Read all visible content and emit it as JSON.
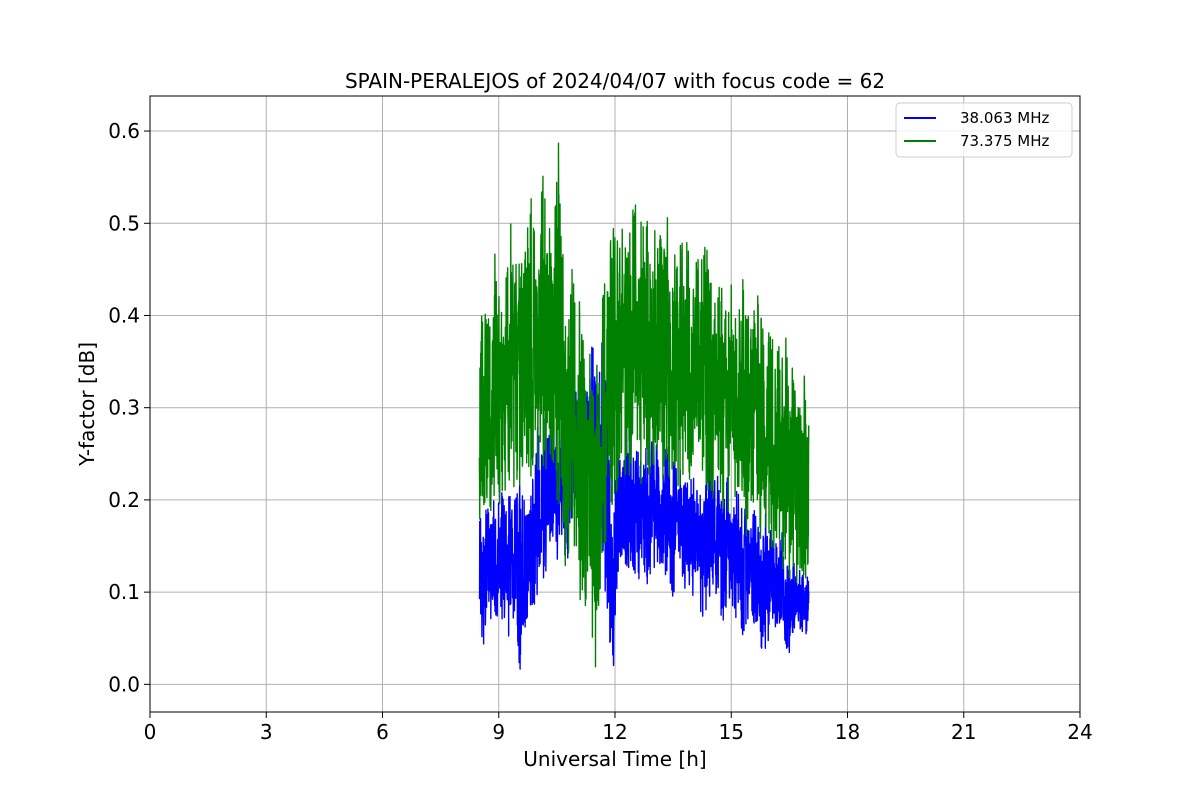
{
  "chart_data": {
    "type": "line",
    "title": "SPAIN-PERALEJOS of 2024/04/07 with focus code = 62",
    "xlabel": "Universal Time [h]",
    "ylabel": "Y-factor [dB]",
    "xlim": [
      0,
      24
    ],
    "ylim": [
      -0.03,
      0.638
    ],
    "xticks": [
      0,
      3,
      6,
      9,
      12,
      15,
      18,
      21,
      24
    ],
    "xtick_labels": [
      "0",
      "3",
      "6",
      "9",
      "12",
      "15",
      "18",
      "21",
      "24"
    ],
    "yticks": [
      0.0,
      0.1,
      0.2,
      0.3,
      0.4,
      0.5,
      0.6
    ],
    "ytick_labels": [
      "0.0",
      "0.1",
      "0.2",
      "0.3",
      "0.4",
      "0.5",
      "0.6"
    ],
    "grid": true,
    "legend_position": "upper right",
    "series": [
      {
        "name": "38.063 MHz",
        "color": "#0000ff",
        "x": [
          8.5,
          8.6,
          8.7,
          8.8,
          8.9,
          9.0,
          9.1,
          9.2,
          9.3,
          9.4,
          9.5,
          9.6,
          9.7,
          9.8,
          9.9,
          10.0,
          10.1,
          10.2,
          10.3,
          10.4,
          10.5,
          10.6,
          10.7,
          10.8,
          10.9,
          11.0,
          11.1,
          11.2,
          11.3,
          11.4,
          11.5,
          11.6,
          11.7,
          11.8,
          11.9,
          12.0,
          12.1,
          12.2,
          12.3,
          12.4,
          12.5,
          12.6,
          12.7,
          12.8,
          12.9,
          13.0,
          13.1,
          13.2,
          13.3,
          13.4,
          13.5,
          13.6,
          13.7,
          13.8,
          13.9,
          14.0,
          14.1,
          14.2,
          14.3,
          14.4,
          14.5,
          14.6,
          14.7,
          14.8,
          14.9,
          15.0,
          15.1,
          15.2,
          15.3,
          15.4,
          15.5,
          15.6,
          15.7,
          15.8,
          15.9,
          16.0,
          16.1,
          16.2,
          16.3,
          16.4,
          16.5,
          16.6,
          16.7,
          16.8,
          16.9,
          17.0
        ],
        "y_low": [
          0.07,
          0.03,
          0.08,
          0.07,
          0.08,
          0.06,
          0.07,
          0.06,
          0.04,
          0.08,
          0.03,
          0.0,
          0.07,
          0.06,
          0.08,
          0.09,
          0.12,
          0.11,
          0.14,
          0.16,
          0.13,
          0.17,
          0.12,
          0.14,
          0.18,
          0.2,
          0.23,
          0.24,
          0.22,
          0.18,
          0.25,
          0.22,
          0.11,
          0.04,
          0.02,
          0.02,
          0.14,
          0.12,
          0.13,
          0.11,
          0.12,
          0.1,
          0.14,
          0.09,
          0.12,
          0.11,
          0.13,
          0.12,
          0.11,
          0.12,
          0.08,
          0.14,
          0.13,
          0.1,
          0.11,
          0.09,
          0.13,
          0.08,
          0.07,
          0.09,
          0.09,
          0.08,
          0.09,
          0.05,
          0.1,
          0.08,
          0.07,
          0.08,
          0.05,
          0.06,
          0.09,
          0.06,
          0.06,
          0.03,
          0.02,
          0.07,
          0.06,
          0.05,
          0.07,
          0.04,
          0.03,
          0.05,
          0.06,
          0.06,
          0.05,
          0.06
        ],
        "y_high": [
          0.18,
          0.19,
          0.2,
          0.17,
          0.22,
          0.2,
          0.21,
          0.19,
          0.22,
          0.2,
          0.21,
          0.23,
          0.19,
          0.24,
          0.22,
          0.28,
          0.29,
          0.3,
          0.31,
          0.34,
          0.28,
          0.3,
          0.29,
          0.31,
          0.33,
          0.34,
          0.3,
          0.31,
          0.32,
          0.37,
          0.36,
          0.34,
          0.39,
          0.34,
          0.22,
          0.24,
          0.26,
          0.27,
          0.29,
          0.28,
          0.25,
          0.27,
          0.24,
          0.26,
          0.27,
          0.28,
          0.26,
          0.24,
          0.27,
          0.25,
          0.26,
          0.23,
          0.24,
          0.22,
          0.24,
          0.23,
          0.22,
          0.21,
          0.25,
          0.24,
          0.26,
          0.25,
          0.23,
          0.21,
          0.24,
          0.2,
          0.22,
          0.21,
          0.19,
          0.2,
          0.18,
          0.19,
          0.17,
          0.18,
          0.19,
          0.17,
          0.16,
          0.15,
          0.17,
          0.14,
          0.13,
          0.15,
          0.12,
          0.13,
          0.12,
          0.14
        ]
      },
      {
        "name": "73.375 MHz",
        "color": "#008000",
        "x": [
          8.5,
          8.6,
          8.7,
          8.8,
          8.9,
          9.0,
          9.1,
          9.2,
          9.3,
          9.4,
          9.5,
          9.6,
          9.7,
          9.8,
          9.9,
          10.0,
          10.1,
          10.2,
          10.3,
          10.4,
          10.5,
          10.6,
          10.7,
          10.8,
          10.9,
          11.0,
          11.1,
          11.2,
          11.3,
          11.4,
          11.5,
          11.6,
          11.7,
          11.8,
          11.9,
          12.0,
          12.1,
          12.2,
          12.3,
          12.4,
          12.5,
          12.6,
          12.7,
          12.8,
          12.9,
          13.0,
          13.1,
          13.2,
          13.3,
          13.4,
          13.5,
          13.6,
          13.7,
          13.8,
          13.9,
          14.0,
          14.1,
          14.2,
          14.3,
          14.4,
          14.5,
          14.6,
          14.7,
          14.8,
          14.9,
          15.0,
          15.1,
          15.2,
          15.3,
          15.4,
          15.5,
          15.6,
          15.7,
          15.8,
          15.9,
          16.0,
          16.1,
          16.2,
          16.3,
          16.4,
          16.5,
          16.6,
          16.7,
          16.8,
          16.9,
          17.0
        ],
        "y_low": [
          0.16,
          0.17,
          0.19,
          0.18,
          0.2,
          0.19,
          0.21,
          0.2,
          0.22,
          0.21,
          0.2,
          0.22,
          0.19,
          0.23,
          0.21,
          0.22,
          0.24,
          0.2,
          0.22,
          0.23,
          0.17,
          0.2,
          0.08,
          0.12,
          0.15,
          0.13,
          0.09,
          0.1,
          0.06,
          0.02,
          0.0,
          0.1,
          0.12,
          0.16,
          0.19,
          0.2,
          0.22,
          0.21,
          0.23,
          0.22,
          0.24,
          0.23,
          0.21,
          0.24,
          0.22,
          0.23,
          0.22,
          0.21,
          0.23,
          0.22,
          0.21,
          0.22,
          0.2,
          0.21,
          0.22,
          0.2,
          0.23,
          0.21,
          0.22,
          0.2,
          0.19,
          0.21,
          0.2,
          0.19,
          0.18,
          0.2,
          0.19,
          0.18,
          0.17,
          0.16,
          0.18,
          0.17,
          0.15,
          0.14,
          0.16,
          0.15,
          0.13,
          0.14,
          0.12,
          0.13,
          0.11,
          0.12,
          0.1,
          0.12,
          0.11,
          0.13
        ],
        "y_high": [
          0.38,
          0.43,
          0.41,
          0.39,
          0.5,
          0.44,
          0.42,
          0.46,
          0.53,
          0.44,
          0.48,
          0.47,
          0.5,
          0.52,
          0.55,
          0.5,
          0.58,
          0.53,
          0.56,
          0.54,
          0.6,
          0.61,
          0.5,
          0.46,
          0.45,
          0.43,
          0.42,
          0.37,
          0.36,
          0.37,
          0.38,
          0.34,
          0.44,
          0.52,
          0.51,
          0.49,
          0.48,
          0.5,
          0.47,
          0.51,
          0.54,
          0.52,
          0.55,
          0.51,
          0.5,
          0.53,
          0.49,
          0.52,
          0.56,
          0.5,
          0.51,
          0.48,
          0.49,
          0.5,
          0.47,
          0.45,
          0.48,
          0.46,
          0.49,
          0.47,
          0.45,
          0.46,
          0.43,
          0.44,
          0.42,
          0.45,
          0.43,
          0.41,
          0.44,
          0.4,
          0.42,
          0.41,
          0.43,
          0.4,
          0.39,
          0.42,
          0.37,
          0.38,
          0.36,
          0.38,
          0.35,
          0.37,
          0.34,
          0.36,
          0.33,
          0.34
        ]
      }
    ]
  }
}
